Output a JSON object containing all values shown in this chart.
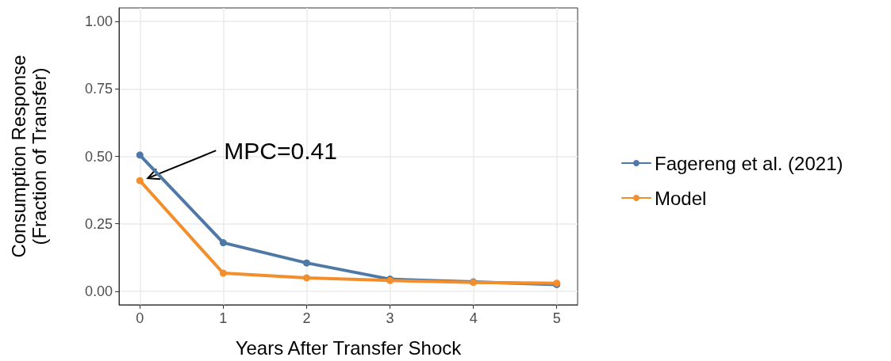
{
  "chart_data": {
    "type": "line",
    "xlabel": "Years After Transfer Shock",
    "ylabel": "Consumption Response\n(Fraction of Transfer)",
    "x": [
      0,
      1,
      2,
      3,
      4,
      5
    ],
    "series": [
      {
        "name": "Fagereng et al. (2021)",
        "color": "#4e79a7",
        "values": [
          0.505,
          0.18,
          0.105,
          0.045,
          0.035,
          0.025
        ]
      },
      {
        "name": "Model",
        "color": "#f28e2b",
        "values": [
          0.41,
          0.067,
          0.05,
          0.04,
          0.033,
          0.03
        ]
      }
    ],
    "xlim": [
      -0.25,
      5.25
    ],
    "xticks": [
      0,
      1,
      2,
      3,
      4,
      5
    ],
    "ylim": [
      -0.05,
      1.05
    ],
    "yticks": [
      {
        "value": 0,
        "label": "0.00"
      },
      {
        "value": 0.25,
        "label": "0.25"
      },
      {
        "value": 0.5,
        "label": "0.50"
      },
      {
        "value": 0.75,
        "label": "0.75"
      },
      {
        "value": 1,
        "label": "1.00"
      }
    ],
    "annotations": [
      "MPC=0.41"
    ],
    "grid": true,
    "legend": "right",
    "marker": "circle",
    "line_style": "solid"
  }
}
